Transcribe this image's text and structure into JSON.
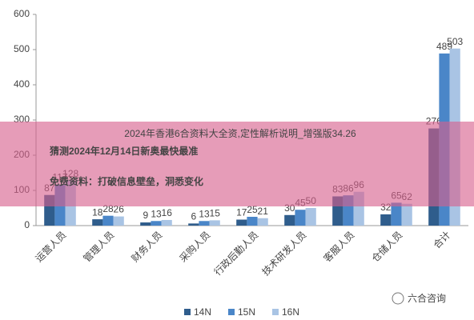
{
  "chart_data": {
    "type": "bar",
    "categories": [
      "运营人员",
      "管理人员",
      "财务人员",
      "采购人员",
      "行政后勤人员",
      "技术研发人员",
      "客服人员",
      "仓储人员",
      "合计"
    ],
    "series": [
      {
        "name": "14N",
        "color": "#2f5d8c",
        "values": [
          87,
          18,
          9,
          6,
          17,
          30,
          83,
          32,
          276
        ]
      },
      {
        "name": "15N",
        "color": "#4a86c8",
        "values": [
          117,
          28,
          13,
          13,
          25,
          45,
          86,
          65,
          489
        ]
      },
      {
        "name": "16N",
        "color": "#a9c4e4",
        "values": [
          128,
          26,
          16,
          15,
          21,
          50,
          96,
          62,
          503
        ]
      }
    ],
    "ylim": [
      0,
      600
    ],
    "yticks": [
      0,
      100,
      200,
      300,
      400,
      500,
      600
    ],
    "legend": "bottom"
  },
  "overlay": {
    "caption": "2024年香港6合资料大全资,定性解析说明_增强版34.26",
    "title_lines": [
      "猜测2024年12月14日新奥最快最准",
      "免费资料：打破信息壁垒，洞悉变化"
    ],
    "watermark": "六合咨询"
  }
}
